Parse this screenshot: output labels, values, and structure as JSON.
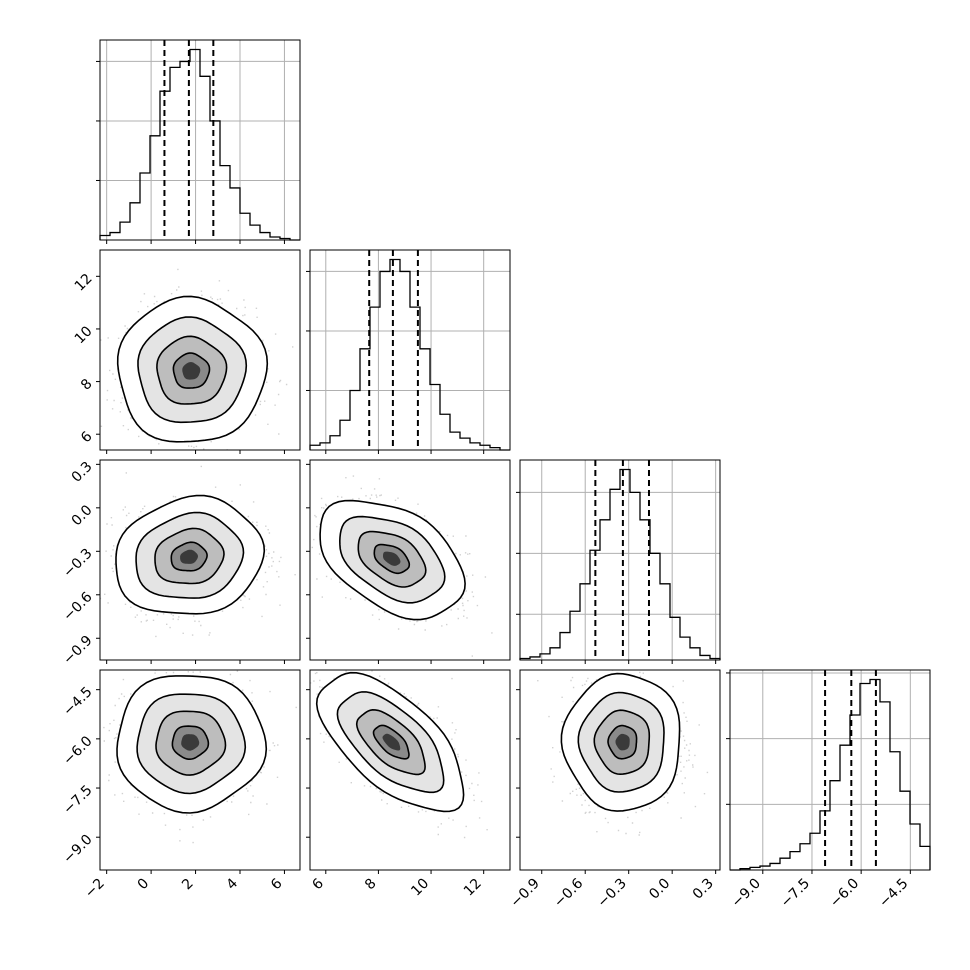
{
  "chart_data": {
    "type": "corner",
    "title": "",
    "grid": true,
    "legend": "none",
    "parameters": [
      {
        "xlim": [
          -2.3,
          6.7
        ],
        "ticks": [
          -2,
          0,
          2,
          4,
          6
        ],
        "tick_labels": [
          "−2",
          "0",
          "2",
          "4",
          "6"
        ]
      },
      {
        "xlim": [
          5.4,
          13.0
        ],
        "ticks": [
          6,
          8,
          10,
          12
        ],
        "tick_labels": [
          "6",
          "8",
          "10",
          "12"
        ]
      },
      {
        "xlim": [
          -1.05,
          0.33
        ],
        "ticks": [
          -0.9,
          -0.6,
          -0.3,
          0.0,
          0.3
        ],
        "tick_labels": [
          "−0.9",
          "−0.6",
          "−0.3",
          "0.0",
          "0.3"
        ]
      },
      {
        "xlim": [
          -10.0,
          -3.9
        ],
        "ticks": [
          -9.0,
          -7.5,
          -6.0,
          -4.5
        ],
        "tick_labels": [
          "−9.0",
          "−7.5",
          "−6.0",
          "−4.5"
        ]
      }
    ],
    "marginals": [
      {
        "param": 0,
        "quantiles": [
          0.6,
          1.7,
          2.8
        ],
        "bins": [
          -2.3,
          -1.85,
          -1.4,
          -0.95,
          -0.5,
          -0.05,
          0.4,
          0.85,
          1.3,
          1.75,
          2.2,
          2.65,
          3.1,
          3.55,
          4.0,
          4.45,
          4.9,
          5.35,
          5.8,
          6.25,
          6.7
        ],
        "counts": [
          3,
          5,
          12,
          25,
          45,
          70,
          100,
          116,
          120,
          128,
          110,
          80,
          50,
          35,
          18,
          10,
          5,
          2,
          1,
          0
        ],
        "yticks": [
          40,
          80,
          120
        ]
      },
      {
        "param": 1,
        "quantiles": [
          7.65,
          8.55,
          9.5
        ],
        "bins": [
          5.4,
          5.78,
          6.16,
          6.54,
          6.92,
          7.3,
          7.68,
          8.06,
          8.44,
          8.82,
          9.2,
          9.58,
          9.96,
          10.34,
          10.72,
          11.1,
          11.48,
          11.86,
          12.24,
          12.62,
          13.0
        ],
        "counts": [
          4,
          6,
          12,
          25,
          50,
          85,
          120,
          150,
          160,
          150,
          120,
          85,
          55,
          30,
          15,
          10,
          6,
          4,
          2,
          0
        ],
        "yticks": [
          50,
          100,
          150
        ]
      },
      {
        "param": 2,
        "quantiles": [
          -0.53,
          -0.34,
          -0.16
        ],
        "bins": [
          -1.05,
          -0.981,
          -0.912,
          -0.843,
          -0.774,
          -0.705,
          -0.636,
          -0.567,
          -0.498,
          -0.429,
          -0.36,
          -0.291,
          -0.222,
          -0.153,
          -0.084,
          -0.015,
          0.054,
          0.123,
          0.192,
          0.261,
          0.33
        ],
        "counts": [
          1,
          2,
          4,
          8,
          18,
          32,
          50,
          72,
          92,
          112,
          125,
          110,
          92,
          70,
          50,
          28,
          15,
          8,
          3,
          1
        ],
        "yticks": [
          30,
          70,
          110
        ]
      },
      {
        "param": 3,
        "quantiles": [
          -7.1,
          -6.3,
          -5.55
        ],
        "bins": [
          -10.0,
          -9.695,
          -9.39,
          -9.085,
          -8.78,
          -8.475,
          -8.17,
          -7.865,
          -7.56,
          -7.255,
          -6.95,
          -6.645,
          -6.34,
          -6.035,
          -5.73,
          -5.425,
          -5.12,
          -4.815,
          -4.51,
          -4.205,
          -3.9
        ],
        "counts": [
          0,
          1,
          2,
          3,
          5,
          9,
          14,
          20,
          28,
          45,
          68,
          95,
          118,
          142,
          145,
          128,
          90,
          60,
          35,
          18
        ],
        "yticks": [
          50,
          100,
          150
        ]
      }
    ],
    "pairs": [
      {
        "x": 0,
        "y": 1,
        "center": [
          1.8,
          8.4
        ],
        "sigma": [
          1.15,
          0.95
        ],
        "rho": 0.0,
        "levels": [
          0.7,
          1.35,
          2.1,
          2.9
        ]
      },
      {
        "x": 0,
        "y": 2,
        "center": [
          1.7,
          -0.34
        ],
        "sigma": [
          1.15,
          0.14
        ],
        "rho": 0.1,
        "levels": [
          0.7,
          1.35,
          2.1,
          2.9
        ]
      },
      {
        "x": 1,
        "y": 2,
        "center": [
          8.5,
          -0.35
        ],
        "sigma": [
          0.95,
          0.14
        ],
        "rho": -0.42,
        "levels": [
          0.7,
          1.35,
          2.1,
          2.9
        ]
      },
      {
        "x": 0,
        "y": 3,
        "center": [
          1.75,
          -6.1
        ],
        "sigma": [
          1.15,
          0.72
        ],
        "rho": 0.0,
        "levels": [
          0.7,
          1.35,
          2.1,
          2.9
        ]
      },
      {
        "x": 1,
        "y": 3,
        "center": [
          8.5,
          -6.1
        ],
        "sigma": [
          0.95,
          0.72
        ],
        "rho": -0.62,
        "levels": [
          0.7,
          1.35,
          2.1,
          2.9
        ]
      },
      {
        "x": 2,
        "y": 3,
        "center": [
          -0.34,
          -6.1
        ],
        "sigma": [
          0.14,
          0.72
        ],
        "rho": 0.0,
        "levels": [
          0.7,
          1.35,
          2.1,
          2.9
        ]
      }
    ]
  }
}
